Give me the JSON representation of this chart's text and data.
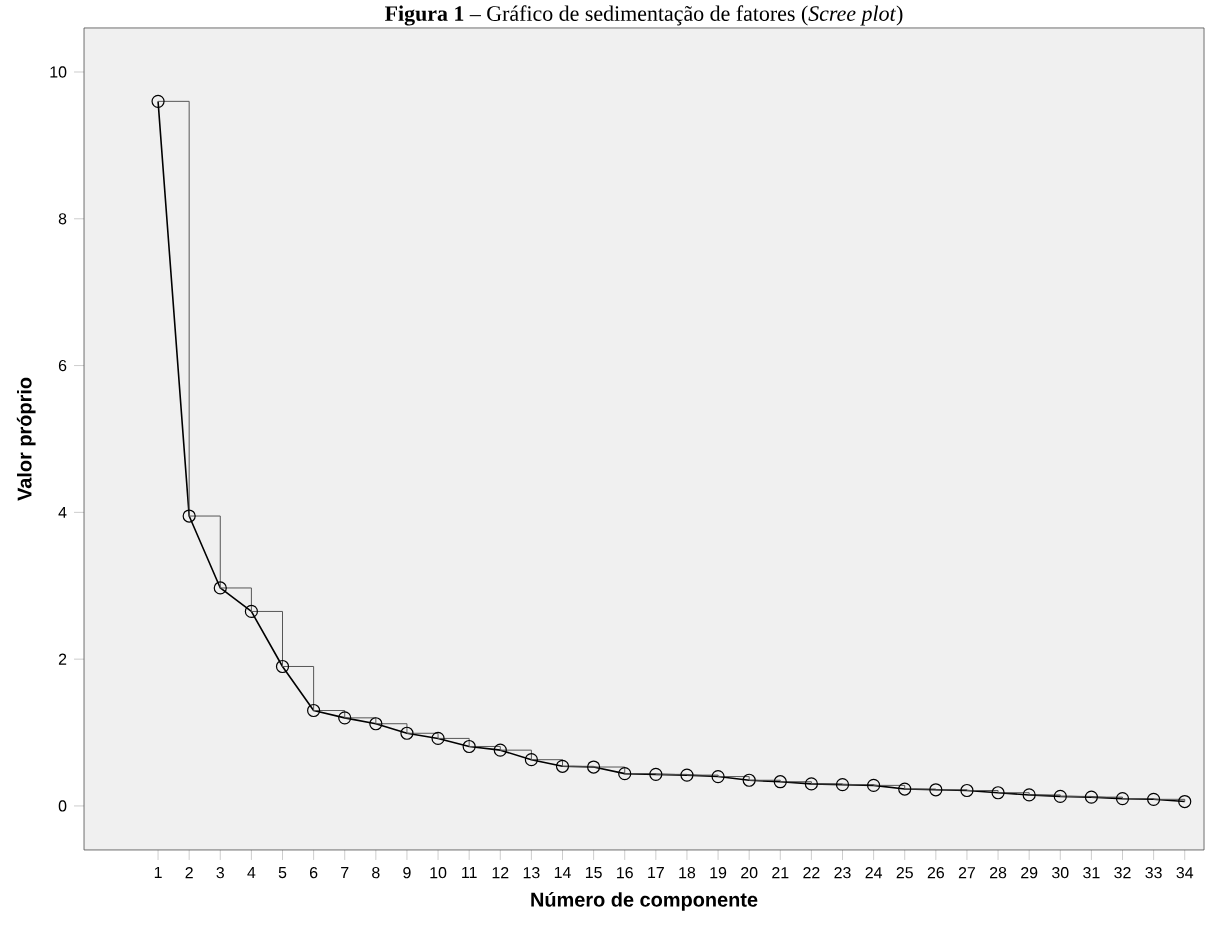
{
  "chart_data": {
    "type": "line",
    "title": "**Figura 1** – Gráfico de sedimentação de fatores (*Scree plot*)",
    "xlabel": "Número de componente",
    "ylabel": "Valor próprio",
    "categories": [
      "1",
      "2",
      "3",
      "4",
      "5",
      "6",
      "7",
      "8",
      "9",
      "10",
      "11",
      "12",
      "13",
      "14",
      "15",
      "16",
      "17",
      "18",
      "19",
      "20",
      "21",
      "22",
      "23",
      "24",
      "25",
      "26",
      "27",
      "28",
      "29",
      "30",
      "31",
      "32",
      "33",
      "34"
    ],
    "series": [
      {
        "color": "#000000",
        "marker": "circle",
        "values": [
          9.6,
          3.95,
          2.97,
          2.65,
          1.9,
          1.3,
          1.2,
          1.12,
          0.99,
          0.92,
          0.81,
          0.76,
          0.63,
          0.54,
          0.53,
          0.44,
          0.43,
          0.42,
          0.4,
          0.35,
          0.33,
          0.3,
          0.29,
          0.28,
          0.23,
          0.22,
          0.21,
          0.18,
          0.15,
          0.13,
          0.12,
          0.1,
          0.09,
          0.06
        ]
      },
      {
        "type": "step",
        "color": "#555555",
        "marker": "none",
        "values": [
          9.6,
          3.95,
          2.97,
          2.65,
          1.9,
          1.3,
          1.2,
          1.12,
          0.99,
          0.92,
          0.81,
          0.76,
          0.63,
          0.54,
          0.53,
          0.44,
          0.43,
          0.42,
          0.4,
          0.35,
          0.33,
          0.3,
          0.29,
          0.28,
          0.23,
          0.22,
          0.21,
          0.18,
          0.15,
          0.13,
          0.12,
          0.1,
          0.09,
          0.06
        ]
      }
    ],
    "ylim": [
      -0.6,
      10.6
    ],
    "yticks": [
      0,
      2,
      4,
      6,
      8,
      10
    ],
    "grid": false
  }
}
